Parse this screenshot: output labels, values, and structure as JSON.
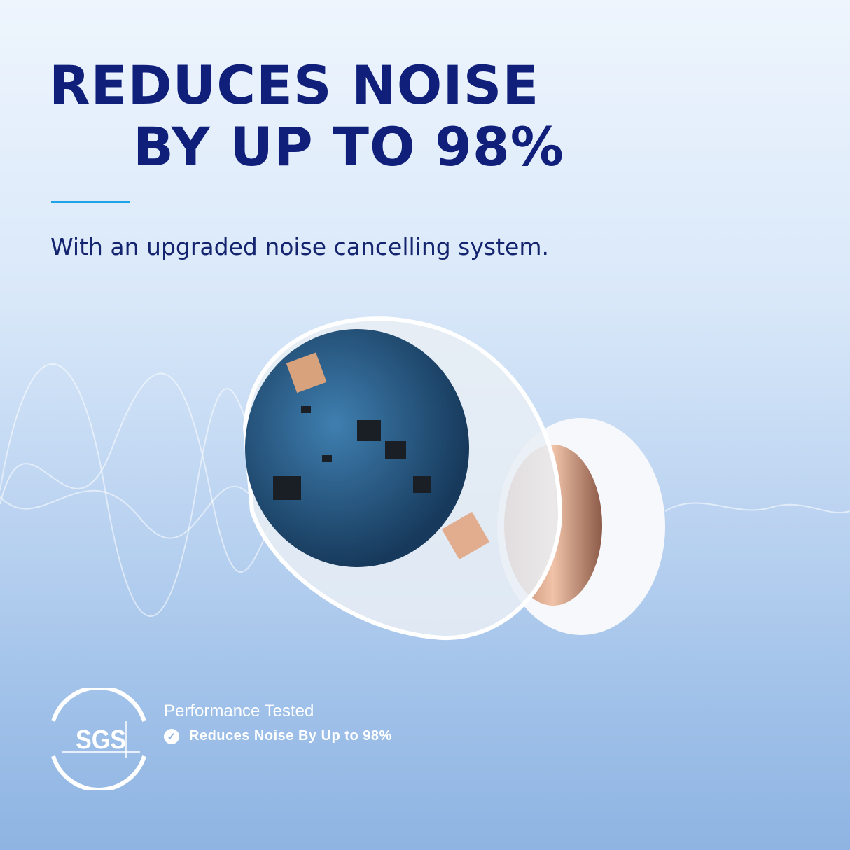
{
  "headline": {
    "line1": "REDUCES NOISE",
    "line2": "BY UP TO 98%"
  },
  "subtitle": "With an upgraded noise cancelling system.",
  "badge": {
    "logo_text": "SGS",
    "title": "Performance Tested",
    "claim": "Reduces Noise By Up to 98%",
    "claim_icon": "check-circle-icon"
  },
  "colors": {
    "headline": "#0f1f7a",
    "accent_rule": "#1ea3e6",
    "background_top": "#eef5fd",
    "background_bottom": "#8fb4e2"
  }
}
